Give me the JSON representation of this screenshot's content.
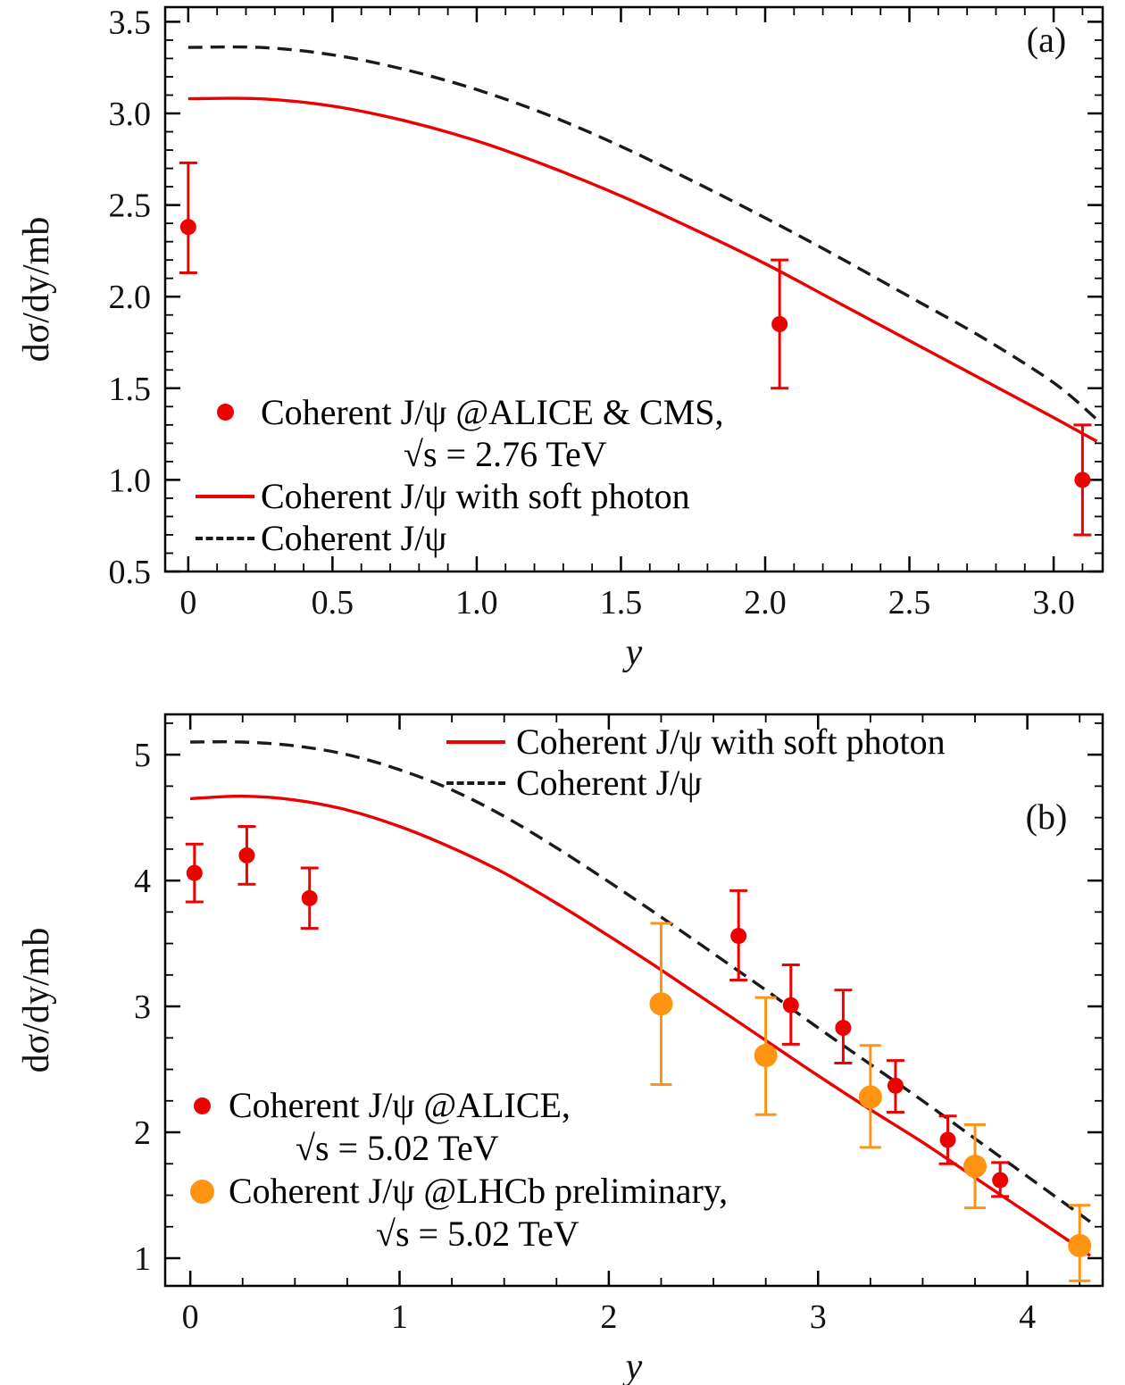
{
  "figure": {
    "background": "#ffffff",
    "text_color": "#000000"
  },
  "chart_data": [
    {
      "id": "panel-a",
      "type": "line+scatter",
      "panel_label": "(a)",
      "xlabel": "y",
      "ylabel": "dσ/dy/mb",
      "xlim": [
        -0.08,
        3.17
      ],
      "ylim": [
        0.5,
        3.58
      ],
      "xticks": [
        0,
        0.5,
        1.0,
        1.5,
        2.0,
        2.5,
        3.0
      ],
      "xtick_labels": [
        "0",
        "0.5",
        "1.0",
        "1.5",
        "2.0",
        "2.5",
        "3.0"
      ],
      "yticks": [
        0.5,
        1.0,
        1.5,
        2.0,
        2.5,
        3.0,
        3.5
      ],
      "ytick_labels": [
        "0.5",
        "1.0",
        "1.5",
        "2.0",
        "2.5",
        "3.0",
        "3.5"
      ],
      "x_minor_step": 0.1,
      "y_minor_step": 0.1,
      "grid": false,
      "series": [
        {
          "name": "coherent-jpsi-with-soft-photon",
          "label": "Coherent J/ψ with soft photon",
          "style": "solid",
          "color": "#ec0000",
          "x": [
            0,
            0.25,
            0.5,
            0.75,
            1.0,
            1.25,
            1.5,
            1.75,
            2.0,
            2.25,
            2.5,
            2.75,
            3.0,
            3.15
          ],
          "y": [
            3.08,
            3.08,
            3.04,
            2.96,
            2.85,
            2.71,
            2.55,
            2.37,
            2.18,
            1.97,
            1.76,
            1.55,
            1.34,
            1.21
          ]
        },
        {
          "name": "coherent-jpsi",
          "label": "Coherent J/ψ",
          "style": "dashed",
          "color": "#1a1a1a",
          "x": [
            0,
            0.25,
            0.5,
            0.75,
            1.0,
            1.25,
            1.5,
            1.75,
            2.0,
            2.25,
            2.5,
            2.75,
            3.0,
            3.15
          ],
          "y": [
            3.36,
            3.36,
            3.32,
            3.24,
            3.13,
            2.99,
            2.82,
            2.63,
            2.43,
            2.22,
            2.0,
            1.78,
            1.53,
            1.33
          ]
        }
      ],
      "datasets": [
        {
          "name": "coherent-jpsi-alice-cms-2p76tev",
          "label": "Coherent J/ψ @ALICE & CMS, √s = 2.76 TeV",
          "color": "#ec0000",
          "marker_radius": 9,
          "cap": 10,
          "points": [
            {
              "x": 0.0,
              "y": 2.38,
              "lo": 2.13,
              "hi": 2.73
            },
            {
              "x": 2.05,
              "y": 1.85,
              "lo": 1.5,
              "hi": 2.2
            },
            {
              "x": 3.1,
              "y": 1.0,
              "lo": 0.7,
              "hi": 1.3
            }
          ]
        }
      ],
      "legend": {
        "position": "lower-left",
        "items": [
          {
            "marker": "dot",
            "color": "#ec0000",
            "label": "Coherent J/ψ @ALICE & CMS,",
            "label2": "√s = 2.76 TeV"
          },
          {
            "marker": "solid-line",
            "color": "#ec0000",
            "label": "Coherent J/ψ with soft photon"
          },
          {
            "marker": "dashed-line",
            "color": "#1a1a1a",
            "label": "Coherent J/ψ"
          }
        ]
      }
    },
    {
      "id": "panel-b",
      "type": "line+scatter",
      "panel_label": "(b)",
      "xlabel": "y",
      "ylabel": "dσ/dy/mb",
      "xlim": [
        -0.12,
        4.36
      ],
      "ylim": [
        0.78,
        5.32
      ],
      "xticks": [
        0,
        1,
        2,
        3,
        4
      ],
      "xtick_labels": [
        "0",
        "1",
        "2",
        "3",
        "4"
      ],
      "yticks": [
        1,
        2,
        3,
        4,
        5
      ],
      "ytick_labels": [
        "1",
        "2",
        "3",
        "4",
        "5"
      ],
      "x_minor_step": 0.25,
      "y_minor_step": 0.25,
      "grid": false,
      "series": [
        {
          "name": "coherent-jpsi-with-soft-photon",
          "label": "Coherent J/ψ with soft photon",
          "style": "solid",
          "color": "#ec0000",
          "x": [
            0,
            0.25,
            0.5,
            0.75,
            1.0,
            1.25,
            1.5,
            1.75,
            2.0,
            2.25,
            2.5,
            2.75,
            3.0,
            3.25,
            3.5,
            3.75,
            4.0,
            4.25,
            4.3
          ],
          "y": [
            4.65,
            4.67,
            4.64,
            4.56,
            4.43,
            4.26,
            4.06,
            3.82,
            3.56,
            3.29,
            3.01,
            2.73,
            2.45,
            2.18,
            1.92,
            1.64,
            1.36,
            1.08,
            1.02
          ]
        },
        {
          "name": "coherent-jpsi",
          "label": "Coherent J/ψ",
          "style": "dashed",
          "color": "#1a1a1a",
          "x": [
            0,
            0.25,
            0.5,
            0.75,
            1.0,
            1.25,
            1.5,
            1.75,
            2.0,
            2.25,
            2.5,
            2.75,
            3.0,
            3.25,
            3.5,
            3.75,
            4.0,
            4.25,
            4.3
          ],
          "y": [
            5.1,
            5.1,
            5.07,
            5.0,
            4.88,
            4.72,
            4.51,
            4.26,
            3.99,
            3.71,
            3.42,
            3.13,
            2.83,
            2.54,
            2.25,
            1.95,
            1.65,
            1.35,
            1.29
          ]
        }
      ],
      "datasets": [
        {
          "name": "coherent-jpsi-alice-5p02tev",
          "label": "Coherent J/ψ @ALICE, √s = 5.02 TeV",
          "color": "#ec0000",
          "marker_radius": 9,
          "cap": 10,
          "points": [
            {
              "x": 0.02,
              "y": 4.06,
              "lo": 3.83,
              "hi": 4.29
            },
            {
              "x": 0.27,
              "y": 4.2,
              "lo": 3.97,
              "hi": 4.43
            },
            {
              "x": 0.57,
              "y": 3.86,
              "lo": 3.62,
              "hi": 4.1
            },
            {
              "x": 2.62,
              "y": 3.56,
              "lo": 3.21,
              "hi": 3.92
            },
            {
              "x": 2.87,
              "y": 3.01,
              "lo": 2.7,
              "hi": 3.33
            },
            {
              "x": 3.12,
              "y": 2.83,
              "lo": 2.55,
              "hi": 3.13
            },
            {
              "x": 3.37,
              "y": 2.37,
              "lo": 2.16,
              "hi": 2.57
            },
            {
              "x": 3.62,
              "y": 1.94,
              "lo": 1.75,
              "hi": 2.13
            },
            {
              "x": 3.87,
              "y": 1.62,
              "lo": 1.49,
              "hi": 1.76
            }
          ]
        },
        {
          "name": "coherent-jpsi-lhcb-preliminary-5p02tev",
          "label": "Coherent J/ψ @LHCb preliminary, √s = 5.02 TeV",
          "color": "#ff9413",
          "marker_radius": 13,
          "cap": 12,
          "points": [
            {
              "x": 2.25,
              "y": 3.02,
              "lo": 2.38,
              "hi": 3.66
            },
            {
              "x": 2.75,
              "y": 2.61,
              "lo": 2.14,
              "hi": 3.07
            },
            {
              "x": 3.25,
              "y": 2.28,
              "lo": 1.88,
              "hi": 2.69
            },
            {
              "x": 3.75,
              "y": 1.73,
              "lo": 1.4,
              "hi": 2.06
            },
            {
              "x": 4.25,
              "y": 1.1,
              "lo": 0.82,
              "hi": 1.42
            }
          ]
        }
      ],
      "legend_top": {
        "position": "upper-right",
        "items": [
          {
            "marker": "solid-line",
            "color": "#ec0000",
            "label": "Coherent J/ψ with soft photon"
          },
          {
            "marker": "dashed-line",
            "color": "#1a1a1a",
            "label": "Coherent J/ψ"
          }
        ]
      },
      "legend_data": {
        "position": "lower-left",
        "items": [
          {
            "marker": "dot",
            "color": "#ec0000",
            "label": "Coherent J/ψ @ALICE,",
            "label2": "√s = 5.02 TeV"
          },
          {
            "marker": "dot-large",
            "color": "#ff9413",
            "label": "Coherent J/ψ @LHCb preliminary,",
            "label2": "√s = 5.02 TeV"
          }
        ]
      }
    }
  ]
}
